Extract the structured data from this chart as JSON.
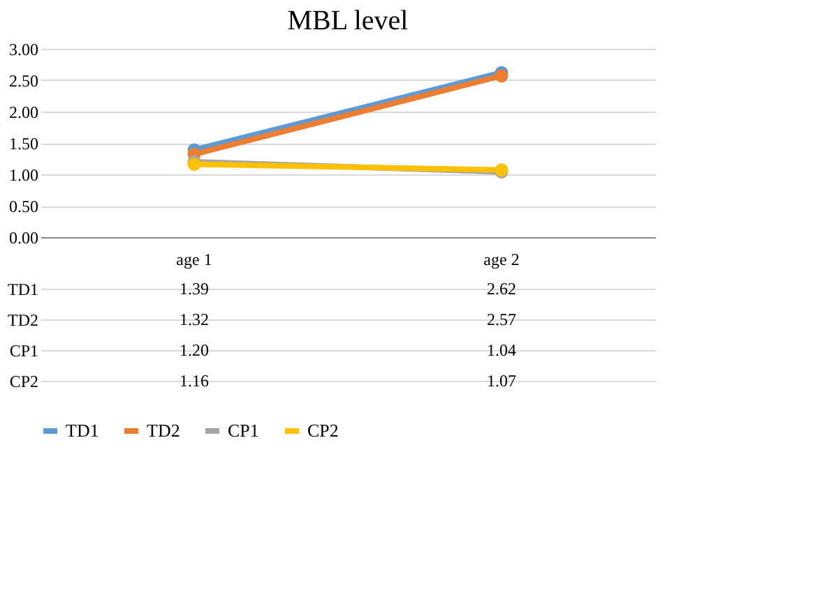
{
  "chart_data": {
    "type": "line",
    "title": "MBL level",
    "categories": [
      "age 1",
      "age 2"
    ],
    "series": [
      {
        "name": "TD1",
        "color": "#5b9bd5",
        "values": [
          1.39,
          2.62
        ],
        "value_labels": [
          "1.39",
          "2.62"
        ]
      },
      {
        "name": "TD2",
        "color": "#ed7d31",
        "values": [
          1.32,
          2.57
        ],
        "value_labels": [
          "1.32",
          "2.57"
        ]
      },
      {
        "name": "CP1",
        "color": "#a5a5a5",
        "values": [
          1.2,
          1.04
        ],
        "value_labels": [
          "1.20",
          "1.04"
        ]
      },
      {
        "name": "CP2",
        "color": "#ffc000",
        "values": [
          1.16,
          1.07
        ],
        "value_labels": [
          "1.16",
          "1.07"
        ]
      }
    ],
    "ylim": [
      0,
      3
    ],
    "yticks": [
      {
        "value": 0,
        "label": "0.00"
      },
      {
        "value": 0.5,
        "label": "0.50"
      },
      {
        "value": 1,
        "label": "1.00"
      },
      {
        "value": 1.5,
        "label": "1.50"
      },
      {
        "value": 2,
        "label": "2.00"
      },
      {
        "value": 2.5,
        "label": "2.50"
      },
      {
        "value": 3,
        "label": "3.00"
      }
    ],
    "grid": "y",
    "legend": "bottom",
    "marker": "circle",
    "line_style": "solid"
  }
}
